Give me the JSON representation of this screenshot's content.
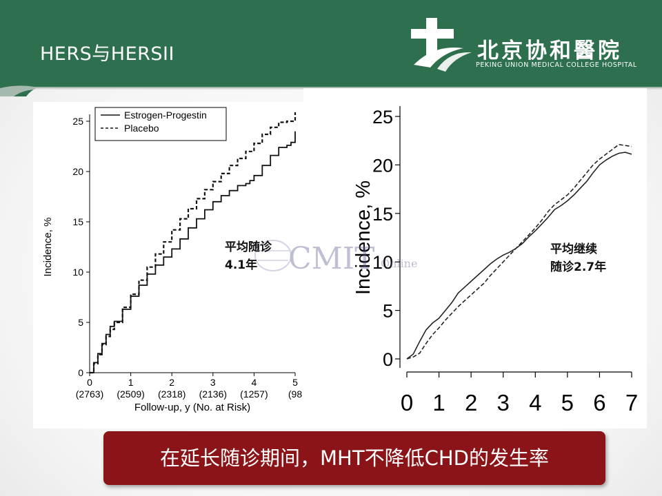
{
  "slide": {
    "title": "HERS与HERSII",
    "header_color": "#2e6f4e",
    "hospital_name_cn": "北京协和醫院",
    "hospital_name_en": "PEKING UNION MEDICAL COLLEGE HOSPITAL",
    "callout": "在延长随诊期间，MHT不降低CHD的发生率",
    "callout_color": "#8b1418"
  },
  "watermark": {
    "text": "CMIT",
    "suffix": "Online"
  },
  "chart_data": [
    {
      "type": "line",
      "ylabel": "Incidence, %",
      "xlabel": "Follow-up, y (No. at Risk)",
      "xlim": [
        0,
        5
      ],
      "ylim": [
        0,
        25
      ],
      "x_ticks": [
        0,
        1,
        2,
        3,
        4,
        5
      ],
      "y_ticks": [
        0,
        5,
        10,
        15,
        20,
        25
      ],
      "at_risk": [
        "(2763)",
        "(2509)",
        "(2318)",
        "(2136)",
        "(1257)",
        "(98"
      ],
      "legend": {
        "position": "top-left",
        "entries": [
          "Estrogen-Progestin",
          "Placebo"
        ]
      },
      "annotation": "平均随诊\n4.1年",
      "series": [
        {
          "name": "Estrogen-Progestin",
          "style": "solid",
          "x": [
            0,
            0.1,
            0.2,
            0.3,
            0.4,
            0.5,
            0.6,
            0.8,
            1.0,
            1.2,
            1.4,
            1.6,
            1.8,
            2.0,
            2.2,
            2.4,
            2.6,
            2.8,
            3.0,
            3.2,
            3.4,
            3.6,
            3.8,
            3.9,
            4.0,
            4.2,
            4.4,
            4.6,
            4.8,
            4.9,
            5.0
          ],
          "y": [
            0,
            1.0,
            1.9,
            2.9,
            3.8,
            4.6,
            5.1,
            6.3,
            7.6,
            8.7,
            9.8,
            10.7,
            11.5,
            12.3,
            13.3,
            14.4,
            15.3,
            16.2,
            17.0,
            17.6,
            18.1,
            18.6,
            18.8,
            19.1,
            19.6,
            20.6,
            21.6,
            22.4,
            22.6,
            22.9,
            24.0
          ]
        },
        {
          "name": "Placebo",
          "style": "dashed",
          "x": [
            0,
            0.1,
            0.2,
            0.3,
            0.4,
            0.5,
            0.6,
            0.8,
            1.0,
            1.2,
            1.4,
            1.6,
            1.8,
            2.0,
            2.2,
            2.4,
            2.6,
            2.8,
            3.0,
            3.2,
            3.4,
            3.6,
            3.8,
            4.0,
            4.2,
            4.4,
            4.6,
            4.8,
            5.0
          ],
          "y": [
            0,
            0.9,
            1.8,
            2.8,
            3.6,
            4.3,
            5.0,
            6.5,
            7.8,
            9.2,
            10.5,
            11.8,
            13.0,
            14.2,
            15.3,
            16.3,
            17.3,
            18.2,
            19.0,
            19.8,
            20.6,
            21.3,
            22.0,
            22.8,
            23.7,
            24.4,
            24.9,
            25.0,
            25.9
          ]
        }
      ]
    },
    {
      "type": "line",
      "ylabel": "Incidence, %",
      "xlim": [
        0,
        7
      ],
      "ylim": [
        0,
        25
      ],
      "x_ticks": [
        0,
        1,
        2,
        3,
        4,
        5,
        6,
        7
      ],
      "y_ticks": [
        0,
        5,
        10,
        15,
        20,
        25
      ],
      "annotation": "平均继续\n随诊2.7年",
      "series": [
        {
          "style": "solid",
          "x": [
            0,
            0.2,
            0.4,
            0.6,
            0.8,
            1.0,
            1.2,
            1.4,
            1.6,
            1.8,
            2.0,
            2.2,
            2.4,
            2.6,
            2.8,
            3.0,
            3.2,
            3.4,
            3.6,
            3.8,
            4.0,
            4.2,
            4.4,
            4.6,
            4.8,
            5.0,
            5.2,
            5.4,
            5.6,
            5.8,
            6.0,
            6.2,
            6.4,
            6.6,
            6.8,
            7.0
          ],
          "y": [
            0,
            0.5,
            1.8,
            3.0,
            3.7,
            4.2,
            5.0,
            5.8,
            6.8,
            7.4,
            8.0,
            8.6,
            9.2,
            9.8,
            10.3,
            10.7,
            11.0,
            11.4,
            11.9,
            12.6,
            13.2,
            13.9,
            14.6,
            15.4,
            15.8,
            16.3,
            16.9,
            17.6,
            18.3,
            19.2,
            20.0,
            20.5,
            20.9,
            21.2,
            21.3,
            21.1
          ]
        },
        {
          "style": "dashed",
          "x": [
            0,
            0.2,
            0.4,
            0.6,
            0.8,
            1.0,
            1.2,
            1.4,
            1.6,
            1.8,
            2.0,
            2.2,
            2.4,
            2.6,
            2.8,
            3.0,
            3.2,
            3.4,
            3.6,
            3.8,
            4.0,
            4.2,
            4.4,
            4.6,
            4.8,
            5.0,
            5.2,
            5.4,
            5.6,
            5.8,
            6.0,
            6.2,
            6.4,
            6.6,
            6.8,
            7.0
          ],
          "y": [
            0,
            0.2,
            0.6,
            1.6,
            2.5,
            3.2,
            4.0,
            4.7,
            5.4,
            6.0,
            6.6,
            7.2,
            7.8,
            8.6,
            9.3,
            10.0,
            10.7,
            11.4,
            12.1,
            12.8,
            13.5,
            14.3,
            15.2,
            15.9,
            16.4,
            16.9,
            17.6,
            18.4,
            19.2,
            20.0,
            20.6,
            21.1,
            21.6,
            22.1,
            22.0,
            21.9
          ]
        }
      ]
    }
  ]
}
